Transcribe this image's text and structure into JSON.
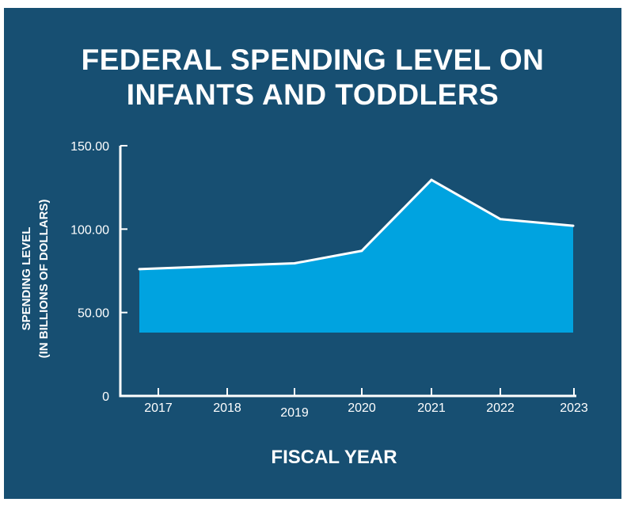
{
  "chart_data": {
    "type": "area",
    "title": [
      "FEDERAL SPENDING LEVEL ON",
      "INFANTS AND TODDLERS"
    ],
    "xlabel": "FISCAL YEAR",
    "ylabel": [
      "SPENDING LEVEL",
      "(IN BILLIONS OF DOLLARS)"
    ],
    "categories": [
      "2017",
      "2018",
      "2019",
      "2020",
      "2021",
      "2022",
      "2023"
    ],
    "values": [
      76,
      78,
      79.5,
      87,
      129.5,
      106,
      102
    ],
    "baseline": 38,
    "ylim": [
      0,
      150
    ],
    "yticks": [
      0,
      50,
      100,
      150
    ],
    "ytick_labels": [
      "0",
      "50.00",
      "100.00",
      "150.00"
    ],
    "grid": false,
    "colors": {
      "background": "#174f72",
      "area": "#00a3e0",
      "line": "#ffffff",
      "text": "#ffffff"
    }
  }
}
